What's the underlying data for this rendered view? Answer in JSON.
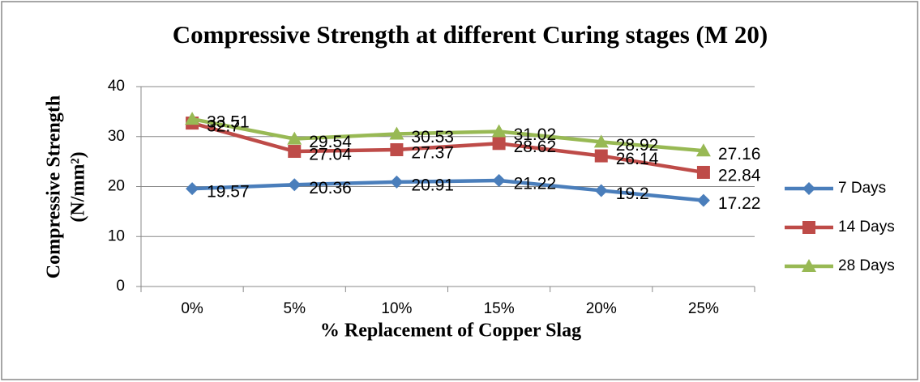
{
  "chart_data": {
    "type": "line",
    "title": "Compressive Strength at different Curing stages (M 20)",
    "x_label": "% Replacement of Copper Slag",
    "y_label": [
      "Compressive Strength",
      "(N/mm²)"
    ],
    "categories": [
      "0%",
      "5%",
      "10%",
      "15%",
      "20%",
      "25%"
    ],
    "series": [
      {
        "name": "7 Days",
        "color": "#4a7ebb",
        "marker": "diamond",
        "values": [
          19.57,
          20.36,
          20.91,
          21.22,
          19.2,
          17.22
        ]
      },
      {
        "name": "14 Days",
        "color": "#be4b48",
        "marker": "square",
        "values": [
          32.7,
          27.04,
          27.37,
          28.62,
          26.14,
          22.84
        ]
      },
      {
        "name": "28 Days",
        "color": "#98b954",
        "marker": "triangle",
        "values": [
          33.51,
          29.54,
          30.53,
          31.02,
          28.92,
          27.16
        ]
      }
    ],
    "ylim": [
      0,
      40
    ],
    "yticks": [
      0,
      10,
      20,
      30,
      40
    ],
    "grid": true,
    "legend": "right"
  }
}
